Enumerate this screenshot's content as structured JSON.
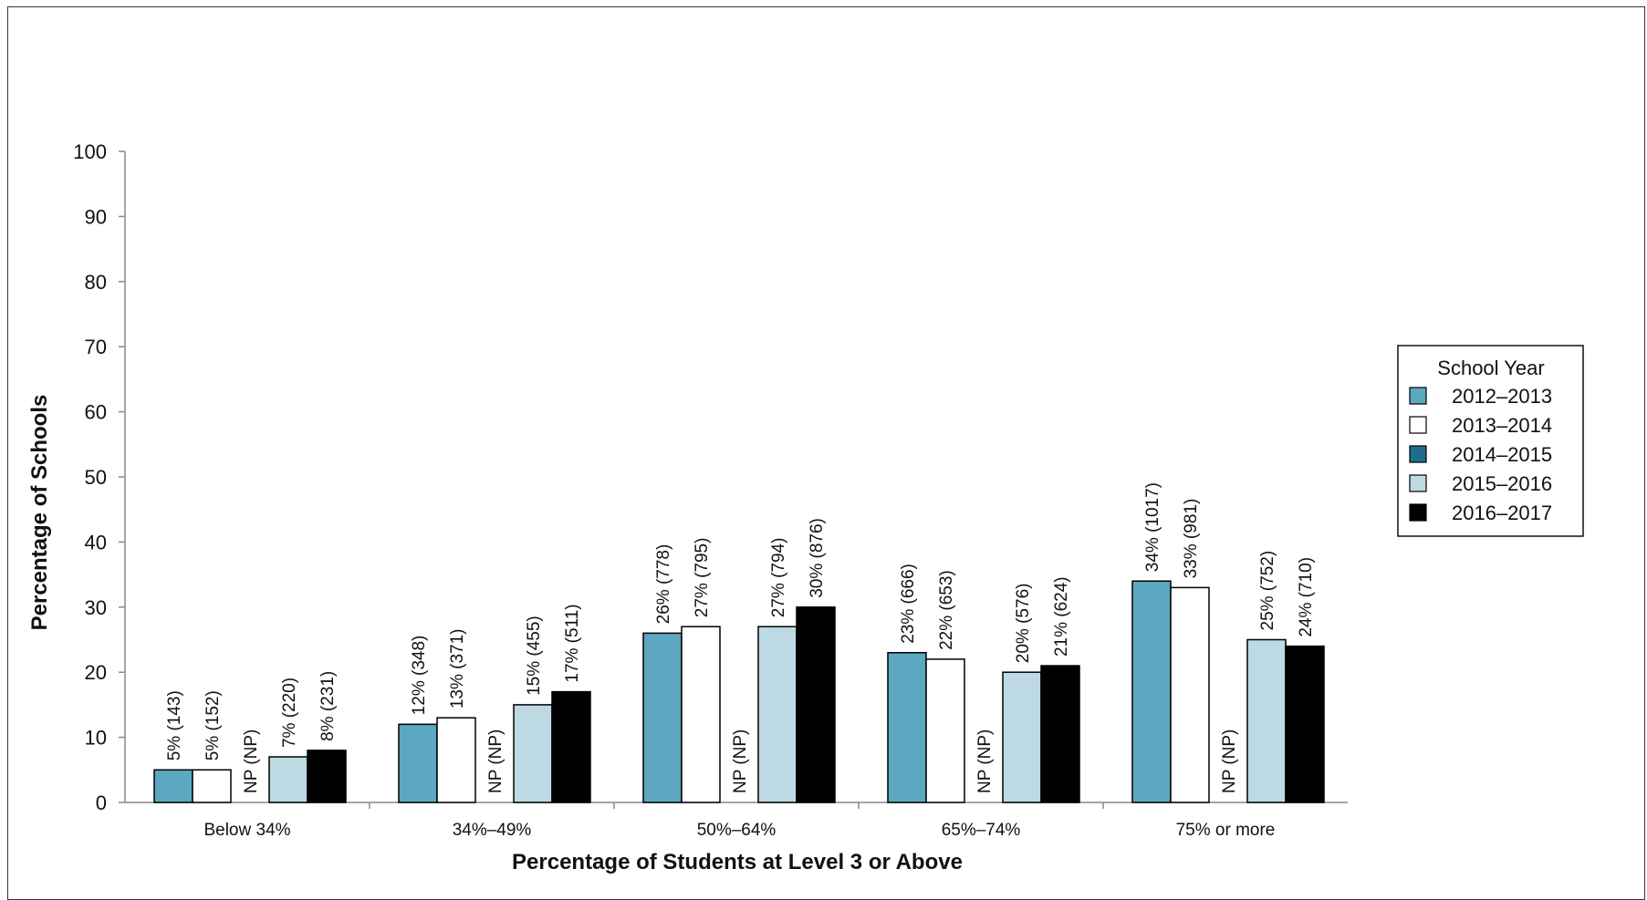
{
  "chart_data": {
    "type": "bar",
    "xlabel": "Percentage of Students at Level 3 or Above",
    "ylabel": "Percentage of Schools",
    "ylim": [
      0,
      100
    ],
    "yticks": [
      0,
      10,
      20,
      30,
      40,
      50,
      60,
      70,
      80,
      90,
      100
    ],
    "categories": [
      "Below 34%",
      "34%–49%",
      "50%–64%",
      "65%–74%",
      "75% or more"
    ],
    "legend": {
      "title": "School Year",
      "placement": "right"
    },
    "series": [
      {
        "name": "2012–2013",
        "color": "#5BA8C0",
        "values": [
          5,
          12,
          26,
          23,
          34
        ],
        "labels": [
          "5% (143)",
          "12% (348)",
          "26% (778)",
          "23% (666)",
          "34% (1017)"
        ]
      },
      {
        "name": "2013–2014",
        "color": "#FFFFFF",
        "values": [
          5,
          13,
          27,
          22,
          33
        ],
        "labels": [
          "5% (152)",
          "13% (371)",
          "27% (795)",
          "22% (653)",
          "33% (981)"
        ]
      },
      {
        "name": "2014–2015",
        "color": "#1E6E8A",
        "values": [
          null,
          null,
          null,
          null,
          null
        ],
        "labels": [
          "NP (NP)",
          "NP (NP)",
          "NP (NP)",
          "NP (NP)",
          "NP (NP)"
        ]
      },
      {
        "name": "2015–2016",
        "color": "#BDD9E4",
        "values": [
          7,
          15,
          27,
          20,
          25
        ],
        "labels": [
          "7% (220)",
          "15% (455)",
          "27% (794)",
          "20% (576)",
          "25% (752)"
        ]
      },
      {
        "name": "2016–2017",
        "color": "#000000",
        "values": [
          8,
          17,
          30,
          21,
          24
        ],
        "labels": [
          "8% (231)",
          "17% (511)",
          "30% (876)",
          "21% (624)",
          "24% (710)"
        ]
      }
    ]
  }
}
